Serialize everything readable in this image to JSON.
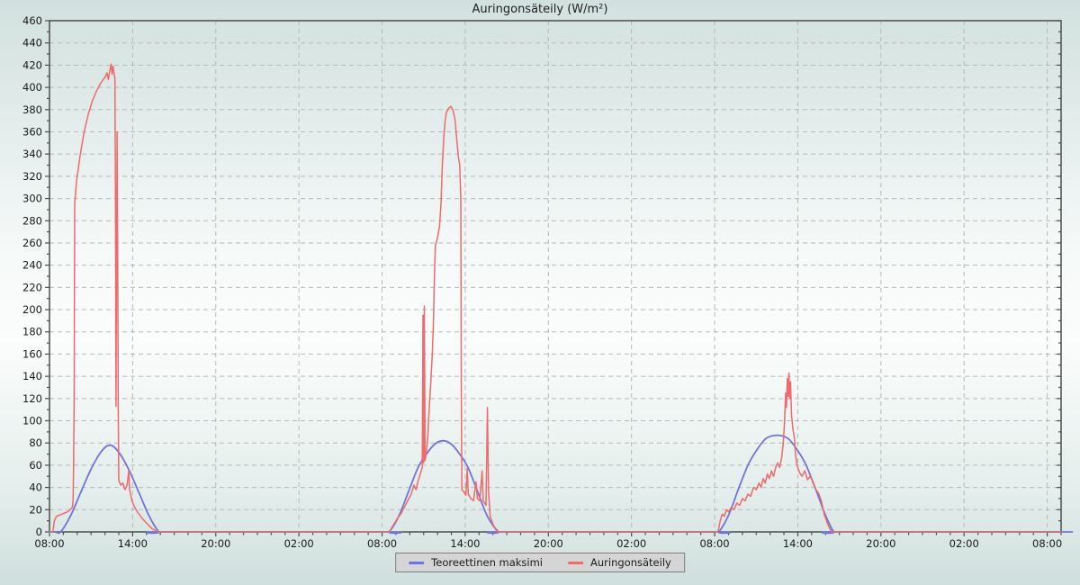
{
  "colors": {
    "series_blue": "#7173dc",
    "series_red": "#ef6a6a",
    "grid": "#b5b9b7",
    "axis": "#4b4d4c",
    "text": "#1a1a1a",
    "legend_bg": "#d5d5d5",
    "legend_border": "#7e7e7e"
  },
  "chart_data": {
    "type": "line",
    "title": "Auringonsäteily (W/m²)",
    "xlabel": "",
    "ylabel": "",
    "grid": "dashed",
    "legend_position": "bottom-center",
    "x_axis": {
      "unit": "hours from first 08:00",
      "range_hours": [
        0,
        73
      ],
      "tick_hours": [
        0,
        6,
        12,
        18,
        24,
        30,
        36,
        42,
        48,
        54,
        60,
        66,
        72
      ],
      "tick_labels": [
        "08:00",
        "14:00",
        "20:00",
        "02:00",
        "08:00",
        "14:00",
        "20:00",
        "02:00",
        "08:00",
        "14:00",
        "20:00",
        "02:00",
        "08:00"
      ],
      "minor_tick_every_hours": 1
    },
    "y_axis": {
      "min": 0,
      "max": 460,
      "major_step": 20,
      "minor_step": 10,
      "tick_labels": [
        "0",
        "20",
        "40",
        "60",
        "80",
        "100",
        "120",
        "140",
        "160",
        "180",
        "200",
        "220",
        "240",
        "260",
        "280",
        "300",
        "320",
        "340",
        "360",
        "380",
        "400",
        "420",
        "440",
        "460"
      ]
    },
    "series": [
      {
        "name": "Teoreettinen maksimi",
        "color": "#7173dc",
        "style": "smooth",
        "points": [
          [
            0,
            0
          ],
          [
            0.4,
            0
          ],
          [
            0.8,
            0
          ],
          [
            1.5,
            14
          ],
          [
            2.2,
            34
          ],
          [
            2.9,
            54
          ],
          [
            3.5,
            68
          ],
          [
            4.0,
            76
          ],
          [
            4.35,
            78
          ],
          [
            4.7,
            76
          ],
          [
            5.2,
            68
          ],
          [
            5.8,
            54
          ],
          [
            6.5,
            34
          ],
          [
            7.2,
            14
          ],
          [
            7.9,
            0
          ],
          [
            8.3,
            0
          ],
          [
            24.1,
            0
          ],
          [
            24.5,
            0
          ],
          [
            25.2,
            14
          ],
          [
            25.9,
            36
          ],
          [
            26.6,
            58
          ],
          [
            27.2,
            70
          ],
          [
            27.8,
            79
          ],
          [
            28.4,
            82
          ],
          [
            29.0,
            79
          ],
          [
            29.6,
            70
          ],
          [
            30.2,
            58
          ],
          [
            30.9,
            36
          ],
          [
            31.6,
            14
          ],
          [
            32.4,
            0
          ],
          [
            32.8,
            0
          ],
          [
            47.9,
            0
          ],
          [
            48.3,
            0
          ],
          [
            49.0,
            15
          ],
          [
            49.7,
            38
          ],
          [
            50.4,
            60
          ],
          [
            51.0,
            73
          ],
          [
            51.7,
            84
          ],
          [
            52.5,
            87
          ],
          [
            53.3,
            84
          ],
          [
            54.0,
            73
          ],
          [
            54.6,
            60
          ],
          [
            55.3,
            38
          ],
          [
            56.0,
            15
          ],
          [
            56.6,
            0
          ],
          [
            57.0,
            0
          ],
          [
            72.5,
            0
          ],
          [
            73,
            0
          ]
        ]
      },
      {
        "name": "Auringonsäteily",
        "color": "#ef6a6a",
        "style": "polyline",
        "points": [
          [
            0,
            0
          ],
          [
            0.25,
            0
          ],
          [
            0.35,
            10
          ],
          [
            0.5,
            14
          ],
          [
            0.7,
            15
          ],
          [
            0.9,
            16
          ],
          [
            1.1,
            17
          ],
          [
            1.3,
            18
          ],
          [
            1.5,
            20
          ],
          [
            1.65,
            22
          ],
          [
            1.7,
            28
          ],
          [
            1.74,
            60
          ],
          [
            1.78,
            120
          ],
          [
            1.82,
            295
          ],
          [
            1.95,
            315
          ],
          [
            2.2,
            338
          ],
          [
            2.5,
            360
          ],
          [
            2.8,
            376
          ],
          [
            3.1,
            388
          ],
          [
            3.4,
            397
          ],
          [
            3.7,
            404
          ],
          [
            4.0,
            409
          ],
          [
            4.15,
            413
          ],
          [
            4.25,
            407
          ],
          [
            4.35,
            415
          ],
          [
            4.45,
            421
          ],
          [
            4.52,
            412
          ],
          [
            4.58,
            419
          ],
          [
            4.65,
            413
          ],
          [
            4.72,
            408
          ],
          [
            4.76,
            300
          ],
          [
            4.8,
            113
          ],
          [
            4.84,
            250
          ],
          [
            4.88,
            360
          ],
          [
            4.92,
            240
          ],
          [
            4.96,
            110
          ],
          [
            5.0,
            46
          ],
          [
            5.15,
            42
          ],
          [
            5.3,
            44
          ],
          [
            5.45,
            38
          ],
          [
            5.6,
            42
          ],
          [
            5.72,
            55
          ],
          [
            5.78,
            38
          ],
          [
            5.95,
            28
          ],
          [
            6.15,
            22
          ],
          [
            6.4,
            17
          ],
          [
            6.7,
            12
          ],
          [
            7.0,
            8
          ],
          [
            7.4,
            3
          ],
          [
            7.8,
            0
          ],
          [
            24.55,
            0
          ],
          [
            24.7,
            4
          ],
          [
            24.9,
            8
          ],
          [
            25.1,
            12
          ],
          [
            25.35,
            16
          ],
          [
            25.6,
            22
          ],
          [
            25.85,
            28
          ],
          [
            26.1,
            34
          ],
          [
            26.3,
            42
          ],
          [
            26.45,
            38
          ],
          [
            26.6,
            46
          ],
          [
            26.75,
            52
          ],
          [
            26.9,
            58
          ],
          [
            26.95,
            195
          ],
          [
            27.0,
            62
          ],
          [
            27.05,
            203
          ],
          [
            27.1,
            64
          ],
          [
            27.2,
            72
          ],
          [
            27.3,
            85
          ],
          [
            27.42,
            115
          ],
          [
            27.52,
            135
          ],
          [
            27.62,
            160
          ],
          [
            27.7,
            185
          ],
          [
            27.78,
            230
          ],
          [
            27.85,
            258
          ],
          [
            27.95,
            262
          ],
          [
            28.05,
            268
          ],
          [
            28.15,
            275
          ],
          [
            28.25,
            295
          ],
          [
            28.35,
            330
          ],
          [
            28.45,
            355
          ],
          [
            28.55,
            370
          ],
          [
            28.65,
            378
          ],
          [
            28.8,
            381
          ],
          [
            28.95,
            383
          ],
          [
            29.1,
            380
          ],
          [
            29.25,
            372
          ],
          [
            29.4,
            352
          ],
          [
            29.5,
            338
          ],
          [
            29.6,
            330
          ],
          [
            29.68,
            300
          ],
          [
            29.72,
            120
          ],
          [
            29.76,
            38
          ],
          [
            29.9,
            36
          ],
          [
            30.05,
            33
          ],
          [
            30.15,
            57
          ],
          [
            30.22,
            34
          ],
          [
            30.4,
            30
          ],
          [
            30.6,
            28
          ],
          [
            30.78,
            45
          ],
          [
            30.88,
            30
          ],
          [
            31.05,
            28
          ],
          [
            31.22,
            55
          ],
          [
            31.3,
            28
          ],
          [
            31.5,
            24
          ],
          [
            31.6,
            112
          ],
          [
            31.68,
            38
          ],
          [
            31.8,
            14
          ],
          [
            32.0,
            7
          ],
          [
            32.2,
            2
          ],
          [
            32.35,
            0
          ],
          [
            48.25,
            0
          ],
          [
            48.4,
            10
          ],
          [
            48.55,
            16
          ],
          [
            48.7,
            14
          ],
          [
            48.85,
            20
          ],
          [
            49.0,
            18
          ],
          [
            49.2,
            22
          ],
          [
            49.4,
            20
          ],
          [
            49.6,
            26
          ],
          [
            49.8,
            24
          ],
          [
            50.0,
            30
          ],
          [
            50.2,
            28
          ],
          [
            50.4,
            34
          ],
          [
            50.6,
            32
          ],
          [
            50.8,
            40
          ],
          [
            51.0,
            38
          ],
          [
            51.2,
            44
          ],
          [
            51.35,
            40
          ],
          [
            51.5,
            48
          ],
          [
            51.65,
            44
          ],
          [
            51.8,
            52
          ],
          [
            51.95,
            48
          ],
          [
            52.1,
            55
          ],
          [
            52.25,
            50
          ],
          [
            52.4,
            58
          ],
          [
            52.55,
            62
          ],
          [
            52.7,
            58
          ],
          [
            52.85,
            68
          ],
          [
            52.95,
            80
          ],
          [
            53.05,
            100
          ],
          [
            53.12,
            125
          ],
          [
            53.18,
            112
          ],
          [
            53.24,
            138
          ],
          [
            53.3,
            122
          ],
          [
            53.36,
            143
          ],
          [
            53.42,
            120
          ],
          [
            53.48,
            135
          ],
          [
            53.55,
            105
          ],
          [
            53.65,
            92
          ],
          [
            53.75,
            85
          ],
          [
            53.85,
            68
          ],
          [
            53.95,
            60
          ],
          [
            54.1,
            54
          ],
          [
            54.3,
            50
          ],
          [
            54.5,
            55
          ],
          [
            54.7,
            47
          ],
          [
            54.9,
            50
          ],
          [
            55.1,
            44
          ],
          [
            55.3,
            38
          ],
          [
            55.5,
            35
          ],
          [
            55.7,
            28
          ],
          [
            55.9,
            16
          ],
          [
            56.1,
            9
          ],
          [
            56.3,
            3
          ],
          [
            56.45,
            0
          ],
          [
            73,
            0
          ]
        ]
      }
    ]
  }
}
